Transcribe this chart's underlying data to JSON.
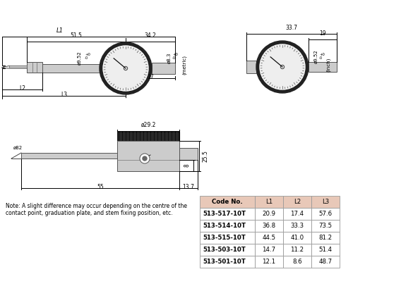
{
  "bg_color": "#ffffff",
  "table_header_bg": "#e8c8b8",
  "table_cols": [
    "Code No.",
    "L1",
    "L2",
    "L3"
  ],
  "table_rows": [
    [
      "513-517-10T",
      "20.9",
      "17.4",
      "57.6"
    ],
    [
      "513-514-10T",
      "36.8",
      "33.3",
      "73.5"
    ],
    [
      "513-515-10T",
      "44.5",
      "41.0",
      "81.2"
    ],
    [
      "513-503-10T",
      "14.7",
      "11.2",
      "51.4"
    ],
    [
      "513-501-10T",
      "12.1",
      "8.6",
      "48.7"
    ]
  ],
  "note_line1": "Note: A slight difference may occur depending on the centre of the",
  "note_line2": "contact point, graduation plate, and stem fixing position, etc.",
  "gray_fill": "#cccccc",
  "dark_fill": "#222222",
  "knurl_line": "#999999",
  "line_color": "#000000"
}
